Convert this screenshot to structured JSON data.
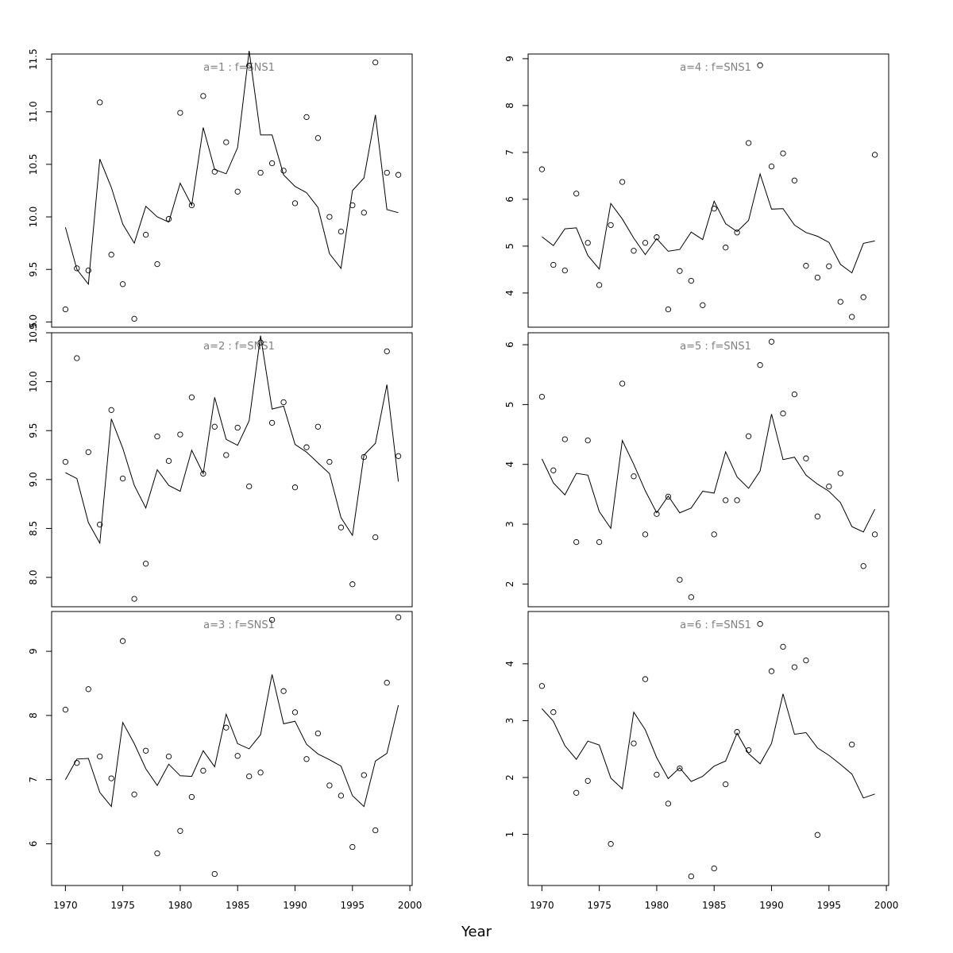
{
  "figure": {
    "xlabel": "Year"
  },
  "chart_data": [
    {
      "type": "scatter",
      "title": "a=1 : f=SNS1",
      "x": [
        1970,
        1971,
        1972,
        1973,
        1974,
        1975,
        1976,
        1977,
        1978,
        1979,
        1980,
        1981,
        1982,
        1983,
        1984,
        1985,
        1986,
        1987,
        1988,
        1989,
        1990,
        1991,
        1992,
        1993,
        1994,
        1995,
        1996,
        1997,
        1998,
        1999
      ],
      "series": [
        {
          "kind": "points",
          "values": [
            9.12,
            9.51,
            9.49,
            11.09,
            9.64,
            9.36,
            9.03,
            9.83,
            9.55,
            9.98,
            10.99,
            10.11,
            11.15,
            10.43,
            10.71,
            10.24,
            11.44,
            10.42,
            10.51,
            10.44,
            10.13,
            10.95,
            10.75,
            10.0,
            9.86,
            10.11,
            10.04,
            11.47,
            10.42,
            10.4
          ]
        },
        {
          "kind": "line",
          "values": [
            9.9,
            9.5,
            9.36,
            10.55,
            10.28,
            9.93,
            9.75,
            10.1,
            10.0,
            9.95,
            10.32,
            10.11,
            10.85,
            10.45,
            10.41,
            10.66,
            11.58,
            10.78,
            10.78,
            10.4,
            10.29,
            10.23,
            10.09,
            9.65,
            9.51,
            10.25,
            10.37,
            10.97,
            10.07,
            10.04
          ]
        }
      ],
      "ylim": [
        8.95,
        11.55
      ],
      "yticks": [
        9.0,
        9.5,
        10.0,
        10.5,
        11.0,
        11.5
      ],
      "yticklabels": [
        "9.0",
        "9.5",
        "10.0",
        "10.5",
        "11.0",
        "11.5"
      ],
      "xticks": [],
      "xticklabels": []
    },
    {
      "type": "scatter",
      "title": "a=2 : f=SNS1",
      "x": [
        1970,
        1971,
        1972,
        1973,
        1974,
        1975,
        1976,
        1977,
        1978,
        1979,
        1980,
        1981,
        1982,
        1983,
        1984,
        1985,
        1986,
        1987,
        1988,
        1989,
        1990,
        1991,
        1992,
        1993,
        1994,
        1995,
        1996,
        1997,
        1998,
        1999
      ],
      "series": [
        {
          "kind": "points",
          "values": [
            9.18,
            10.24,
            9.28,
            8.54,
            9.71,
            9.01,
            7.78,
            8.14,
            9.44,
            9.19,
            9.46,
            9.84,
            9.06,
            9.54,
            9.25,
            9.53,
            8.93,
            10.4,
            9.58,
            9.79,
            8.92,
            9.33,
            9.54,
            9.18,
            8.51,
            7.93,
            9.23,
            8.41,
            10.31,
            9.24
          ]
        },
        {
          "kind": "line",
          "values": [
            9.07,
            9.01,
            8.56,
            8.35,
            9.62,
            9.32,
            8.94,
            8.71,
            9.1,
            8.94,
            8.88,
            9.3,
            9.06,
            9.84,
            9.41,
            9.35,
            9.6,
            10.47,
            9.72,
            9.75,
            9.36,
            9.28,
            9.17,
            9.06,
            8.61,
            8.43,
            9.25,
            9.37,
            9.97,
            8.98
          ]
        }
      ],
      "ylim": [
        7.7,
        10.5
      ],
      "yticks": [
        8.0,
        8.5,
        9.0,
        9.5,
        10.0,
        10.5
      ],
      "yticklabels": [
        "8.0",
        "8.5",
        "9.0",
        "9.5",
        "10.0",
        "10.5"
      ],
      "xticks": [],
      "xticklabels": []
    },
    {
      "type": "scatter",
      "title": "a=3 : f=SNS1",
      "x": [
        1970,
        1971,
        1972,
        1973,
        1974,
        1975,
        1976,
        1977,
        1978,
        1979,
        1980,
        1981,
        1982,
        1983,
        1984,
        1985,
        1986,
        1987,
        1988,
        1989,
        1990,
        1991,
        1992,
        1993,
        1994,
        1995,
        1996,
        1997,
        1998,
        1999
      ],
      "series": [
        {
          "kind": "points",
          "values": [
            8.09,
            7.26,
            8.41,
            7.36,
            7.02,
            9.16,
            6.77,
            7.45,
            5.85,
            7.36,
            6.2,
            6.73,
            7.14,
            5.53,
            7.81,
            7.37,
            7.05,
            7.11,
            9.49,
            8.38,
            8.05,
            7.32,
            7.72,
            6.91,
            6.75,
            5.95,
            7.07,
            6.21,
            8.51,
            9.53
          ]
        },
        {
          "kind": "line",
          "values": [
            7.0,
            7.32,
            7.33,
            6.8,
            6.58,
            7.89,
            7.56,
            7.17,
            6.91,
            7.24,
            7.06,
            7.05,
            7.45,
            7.2,
            8.02,
            7.56,
            7.48,
            7.7,
            8.64,
            7.87,
            7.91,
            7.55,
            7.4,
            7.31,
            7.21,
            6.75,
            6.58,
            7.29,
            7.41,
            8.16
          ]
        }
      ],
      "ylim": [
        5.35,
        9.62
      ],
      "yticks": [
        6,
        7,
        8,
        9
      ],
      "yticklabels": [
        "6",
        "7",
        "8",
        "9"
      ],
      "xticks": [
        1970,
        1975,
        1980,
        1985,
        1990,
        1995,
        2000
      ],
      "xticklabels": [
        "1970",
        "1975",
        "1980",
        "1985",
        "1990",
        "1995",
        "2000"
      ]
    },
    {
      "type": "scatter",
      "title": "a=4 : f=SNS1",
      "x": [
        1970,
        1971,
        1972,
        1973,
        1974,
        1975,
        1976,
        1977,
        1978,
        1979,
        1980,
        1981,
        1982,
        1983,
        1984,
        1985,
        1986,
        1987,
        1988,
        1989,
        1990,
        1991,
        1992,
        1993,
        1994,
        1995,
        1996,
        1997,
        1998,
        1999
      ],
      "series": [
        {
          "kind": "points",
          "values": [
            6.64,
            4.6,
            4.48,
            6.12,
            5.07,
            4.17,
            5.45,
            6.37,
            4.9,
            5.07,
            5.19,
            3.65,
            4.47,
            4.26,
            3.74,
            5.8,
            4.97,
            5.29,
            7.2,
            8.86,
            6.7,
            6.98,
            6.4,
            4.58,
            4.33,
            4.57,
            3.81,
            3.49,
            3.91,
            6.95
          ]
        },
        {
          "kind": "line",
          "values": [
            5.2,
            5.01,
            5.37,
            5.39,
            4.8,
            4.51,
            5.91,
            5.58,
            5.17,
            4.82,
            5.16,
            4.89,
            4.93,
            5.3,
            5.14,
            5.96,
            5.48,
            5.31,
            5.55,
            6.54,
            5.79,
            5.8,
            5.45,
            5.29,
            5.21,
            5.08,
            4.61,
            4.43,
            5.06,
            5.11
          ]
        }
      ],
      "ylim": [
        3.27,
        9.1
      ],
      "yticks": [
        4,
        5,
        6,
        7,
        8,
        9
      ],
      "yticklabels": [
        "4",
        "5",
        "6",
        "7",
        "8",
        "9"
      ],
      "xticks": [],
      "xticklabels": []
    },
    {
      "type": "scatter",
      "title": "a=5 : f=SNS1",
      "x": [
        1970,
        1971,
        1972,
        1973,
        1974,
        1975,
        1976,
        1977,
        1978,
        1979,
        1980,
        1981,
        1982,
        1983,
        1984,
        1985,
        1986,
        1987,
        1988,
        1989,
        1990,
        1991,
        1992,
        1993,
        1994,
        1995,
        1996,
        1997,
        1998,
        1999
      ],
      "series": [
        {
          "kind": "points",
          "values": [
            5.13,
            3.9,
            4.42,
            2.7,
            4.4,
            2.7,
            null,
            5.35,
            3.8,
            2.83,
            3.17,
            3.46,
            2.07,
            1.78,
            null,
            2.83,
            3.4,
            3.4,
            4.47,
            5.66,
            6.05,
            4.85,
            5.17,
            4.1,
            3.13,
            3.63,
            3.85,
            null,
            2.3,
            2.83
          ]
        },
        {
          "kind": "line",
          "values": [
            4.09,
            3.69,
            3.49,
            3.85,
            3.82,
            3.21,
            2.93,
            4.4,
            4.0,
            3.56,
            3.19,
            3.47,
            3.19,
            3.27,
            3.55,
            3.52,
            4.21,
            3.79,
            3.6,
            3.89,
            4.84,
            4.08,
            4.12,
            3.82,
            3.67,
            3.55,
            3.36,
            2.96,
            2.87,
            3.25
          ]
        }
      ],
      "ylim": [
        1.62,
        6.2
      ],
      "yticks": [
        2,
        3,
        4,
        5,
        6
      ],
      "yticklabels": [
        "2",
        "3",
        "4",
        "5",
        "6"
      ],
      "xticks": [],
      "xticklabels": []
    },
    {
      "type": "scatter",
      "title": "a=6 : f=SNS1",
      "x": [
        1970,
        1971,
        1972,
        1973,
        1974,
        1975,
        1976,
        1977,
        1978,
        1979,
        1980,
        1981,
        1982,
        1983,
        1984,
        1985,
        1986,
        1987,
        1988,
        1989,
        1990,
        1991,
        1992,
        1993,
        1994,
        1995,
        1996,
        1997,
        1998,
        1999
      ],
      "series": [
        {
          "kind": "points",
          "values": [
            3.61,
            3.15,
            null,
            1.73,
            1.94,
            null,
            0.83,
            null,
            2.6,
            3.73,
            2.05,
            1.54,
            2.16,
            0.26,
            null,
            0.4,
            1.88,
            2.8,
            2.48,
            4.7,
            3.87,
            4.3,
            3.94,
            4.06,
            0.99,
            null,
            null,
            2.58,
            null,
            null
          ]
        },
        {
          "kind": "line",
          "values": [
            3.21,
            2.99,
            2.56,
            2.32,
            2.64,
            2.57,
            1.99,
            1.8,
            3.15,
            2.84,
            2.35,
            1.98,
            2.17,
            1.93,
            2.02,
            2.2,
            2.29,
            2.78,
            2.42,
            2.24,
            2.6,
            3.47,
            2.76,
            2.79,
            2.52,
            2.39,
            2.23,
            2.06,
            1.64,
            1.71
          ]
        }
      ],
      "ylim": [
        0.1,
        4.92
      ],
      "yticks": [
        1,
        2,
        3,
        4
      ],
      "yticklabels": [
        "1",
        "2",
        "3",
        "4"
      ],
      "xticks": [
        1970,
        1975,
        1980,
        1985,
        1990,
        1995,
        2000
      ],
      "xticklabels": [
        "1970",
        "1975",
        "1980",
        "1985",
        "1990",
        "1995",
        "2000"
      ]
    }
  ]
}
